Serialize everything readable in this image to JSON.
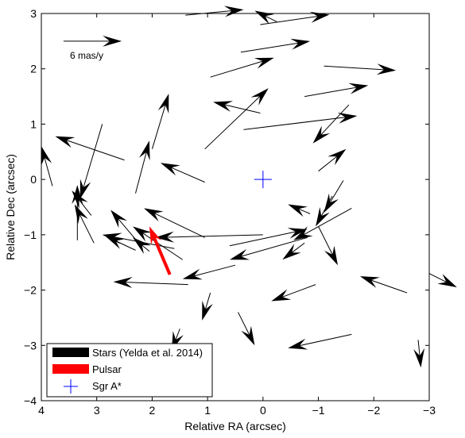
{
  "chart_data": {
    "type": "quiver",
    "xlabel": "Relative RA (arcsec)",
    "ylabel": "Relative Dec (arcsec)",
    "xlim": [
      4,
      -3
    ],
    "ylim": [
      -4,
      3
    ],
    "x_ticks": [
      "4",
      "3",
      "2",
      "1",
      "0",
      "−1",
      "−2",
      "−3"
    ],
    "y_ticks": [
      "3",
      "2",
      "1",
      "0",
      "−1",
      "−2",
      "−3",
      "−4"
    ],
    "x_tick_values": [
      4,
      3,
      2,
      1,
      0,
      -1,
      -2,
      -3
    ],
    "y_tick_values": [
      3,
      2,
      1,
      0,
      -1,
      -2,
      -3,
      -4
    ],
    "scale_annotation": "6 mas/y",
    "scale_arrow": {
      "x0": 3.6,
      "y0": 2.5,
      "x1": 2.55,
      "y1": 2.5
    },
    "legend": {
      "placement": "bottom-left",
      "entries": [
        {
          "label": "Stars (Yelda et al. 2014)",
          "color": "#000000",
          "style": "thick-line"
        },
        {
          "label": "Pulsar",
          "color": "#ff0000",
          "style": "thick-line"
        },
        {
          "label": "Sgr A*",
          "color": "#0000ff",
          "style": "plus"
        }
      ]
    },
    "sgr_a": {
      "x": 0,
      "y": 0,
      "color": "#0000ff"
    },
    "pulsar": {
      "x0": 1.68,
      "y0": -1.72,
      "x1": 2.05,
      "y1": -0.85,
      "color": "#ff0000"
    },
    "stars": [
      {
        "x0": 1.4,
        "y0": 2.97,
        "x1": 0.35,
        "y1": 3.07
      },
      {
        "x0": 0.05,
        "y0": 2.8,
        "x1": -1.2,
        "y1": 2.98
      },
      {
        "x0": -0.25,
        "y0": 2.85,
        "x1": 0.15,
        "y1": 3.05
      },
      {
        "x0": 0.4,
        "y0": 2.3,
        "x1": -0.85,
        "y1": 2.5
      },
      {
        "x0": -1.1,
        "y0": 2.05,
        "x1": -2.4,
        "y1": 1.97
      },
      {
        "x0": 0.95,
        "y0": 1.85,
        "x1": -0.2,
        "y1": 2.2
      },
      {
        "x0": -0.75,
        "y0": 1.5,
        "x1": -1.9,
        "y1": 1.7
      },
      {
        "x0": 0.05,
        "y0": 1.2,
        "x1": 0.9,
        "y1": 1.4
      },
      {
        "x0": 1.05,
        "y0": 0.55,
        "x1": -0.1,
        "y1": 1.65
      },
      {
        "x0": 0.35,
        "y0": 0.9,
        "x1": -1.7,
        "y1": 1.15
      },
      {
        "x0": -1.55,
        "y0": 1.35,
        "x1": -0.9,
        "y1": 0.65
      },
      {
        "x0": 2.5,
        "y0": 0.35,
        "x1": 3.75,
        "y1": 0.78
      },
      {
        "x0": 2.0,
        "y0": 0.55,
        "x1": 1.7,
        "y1": 1.55
      },
      {
        "x0": 2.3,
        "y0": -0.25,
        "x1": 2.05,
        "y1": 0.7
      },
      {
        "x0": 1.05,
        "y0": -0.05,
        "x1": 1.85,
        "y1": 0.3
      },
      {
        "x0": 3.8,
        "y0": -0.12,
        "x1": 4.0,
        "y1": 0.6
      },
      {
        "x0": 2.9,
        "y0": 1.0,
        "x1": 3.3,
        "y1": -0.35
      },
      {
        "x0": 3.35,
        "y0": -1.1,
        "x1": 3.35,
        "y1": -0.1
      },
      {
        "x0": 3.05,
        "y0": -1.15,
        "x1": 3.4,
        "y1": -0.45
      },
      {
        "x0": 3.1,
        "y0": -0.65,
        "x1": 3.45,
        "y1": -0.2
      },
      {
        "x0": 2.2,
        "y0": -1.2,
        "x1": 2.75,
        "y1": -0.55
      },
      {
        "x0": 1.05,
        "y0": -1.05,
        "x1": 2.15,
        "y1": -0.52
      },
      {
        "x0": 2.3,
        "y0": -1.28,
        "x1": 2.85,
        "y1": -1.02
      },
      {
        "x0": 1.45,
        "y0": -1.45,
        "x1": 2.35,
        "y1": -0.85
      },
      {
        "x0": 2.05,
        "y0": -1.3,
        "x1": 2.35,
        "y1": -1.05
      },
      {
        "x0": 1.6,
        "y0": -1.25,
        "x1": 2.9,
        "y1": -1.0
      },
      {
        "x0": 0.0,
        "y0": -1.0,
        "x1": 1.95,
        "y1": -1.05
      },
      {
        "x0": -0.85,
        "y0": -0.62,
        "x1": -0.45,
        "y1": -0.45
      },
      {
        "x0": -1.0,
        "y0": 0.15,
        "x1": -1.5,
        "y1": 0.55
      },
      {
        "x0": -1.45,
        "y0": -0.02,
        "x1": -1.1,
        "y1": -0.6
      },
      {
        "x0": -1.0,
        "y0": -0.85,
        "x1": -1.35,
        "y1": -1.55
      },
      {
        "x0": -0.75,
        "y0": -1.15,
        "x1": -0.35,
        "y1": -1.45
      },
      {
        "x0": -1.6,
        "y0": -0.52,
        "x1": -0.55,
        "y1": -1.1
      },
      {
        "x0": -1.25,
        "y0": -0.3,
        "x1": -0.95,
        "y1": -0.85
      },
      {
        "x0": 0.6,
        "y0": -1.2,
        "x1": -0.8,
        "y1": -0.9
      },
      {
        "x0": 0.5,
        "y0": -1.55,
        "x1": 1.45,
        "y1": -1.8
      },
      {
        "x0": -0.8,
        "y0": -1.05,
        "x1": 0.6,
        "y1": -1.45
      },
      {
        "x0": -2.6,
        "y0": -2.05,
        "x1": -1.75,
        "y1": -1.75
      },
      {
        "x0": 1.35,
        "y0": -1.9,
        "x1": 2.7,
        "y1": -1.85
      },
      {
        "x0": 0.95,
        "y0": -2.05,
        "x1": 1.1,
        "y1": -2.55
      },
      {
        "x0": -0.95,
        "y0": -1.9,
        "x1": -0.15,
        "y1": -2.2
      },
      {
        "x0": 0.45,
        "y0": -2.4,
        "x1": 0.15,
        "y1": -3.0
      },
      {
        "x0": 1.5,
        "y0": -2.7,
        "x1": 1.65,
        "y1": -3.1
      },
      {
        "x0": -1.6,
        "y0": -2.8,
        "x1": -0.45,
        "y1": -3.05
      },
      {
        "x0": -3.0,
        "y0": -1.7,
        "x1": -3.5,
        "y1": -1.95
      },
      {
        "x0": -2.8,
        "y0": -2.9,
        "x1": -2.85,
        "y1": -3.4
      }
    ]
  }
}
